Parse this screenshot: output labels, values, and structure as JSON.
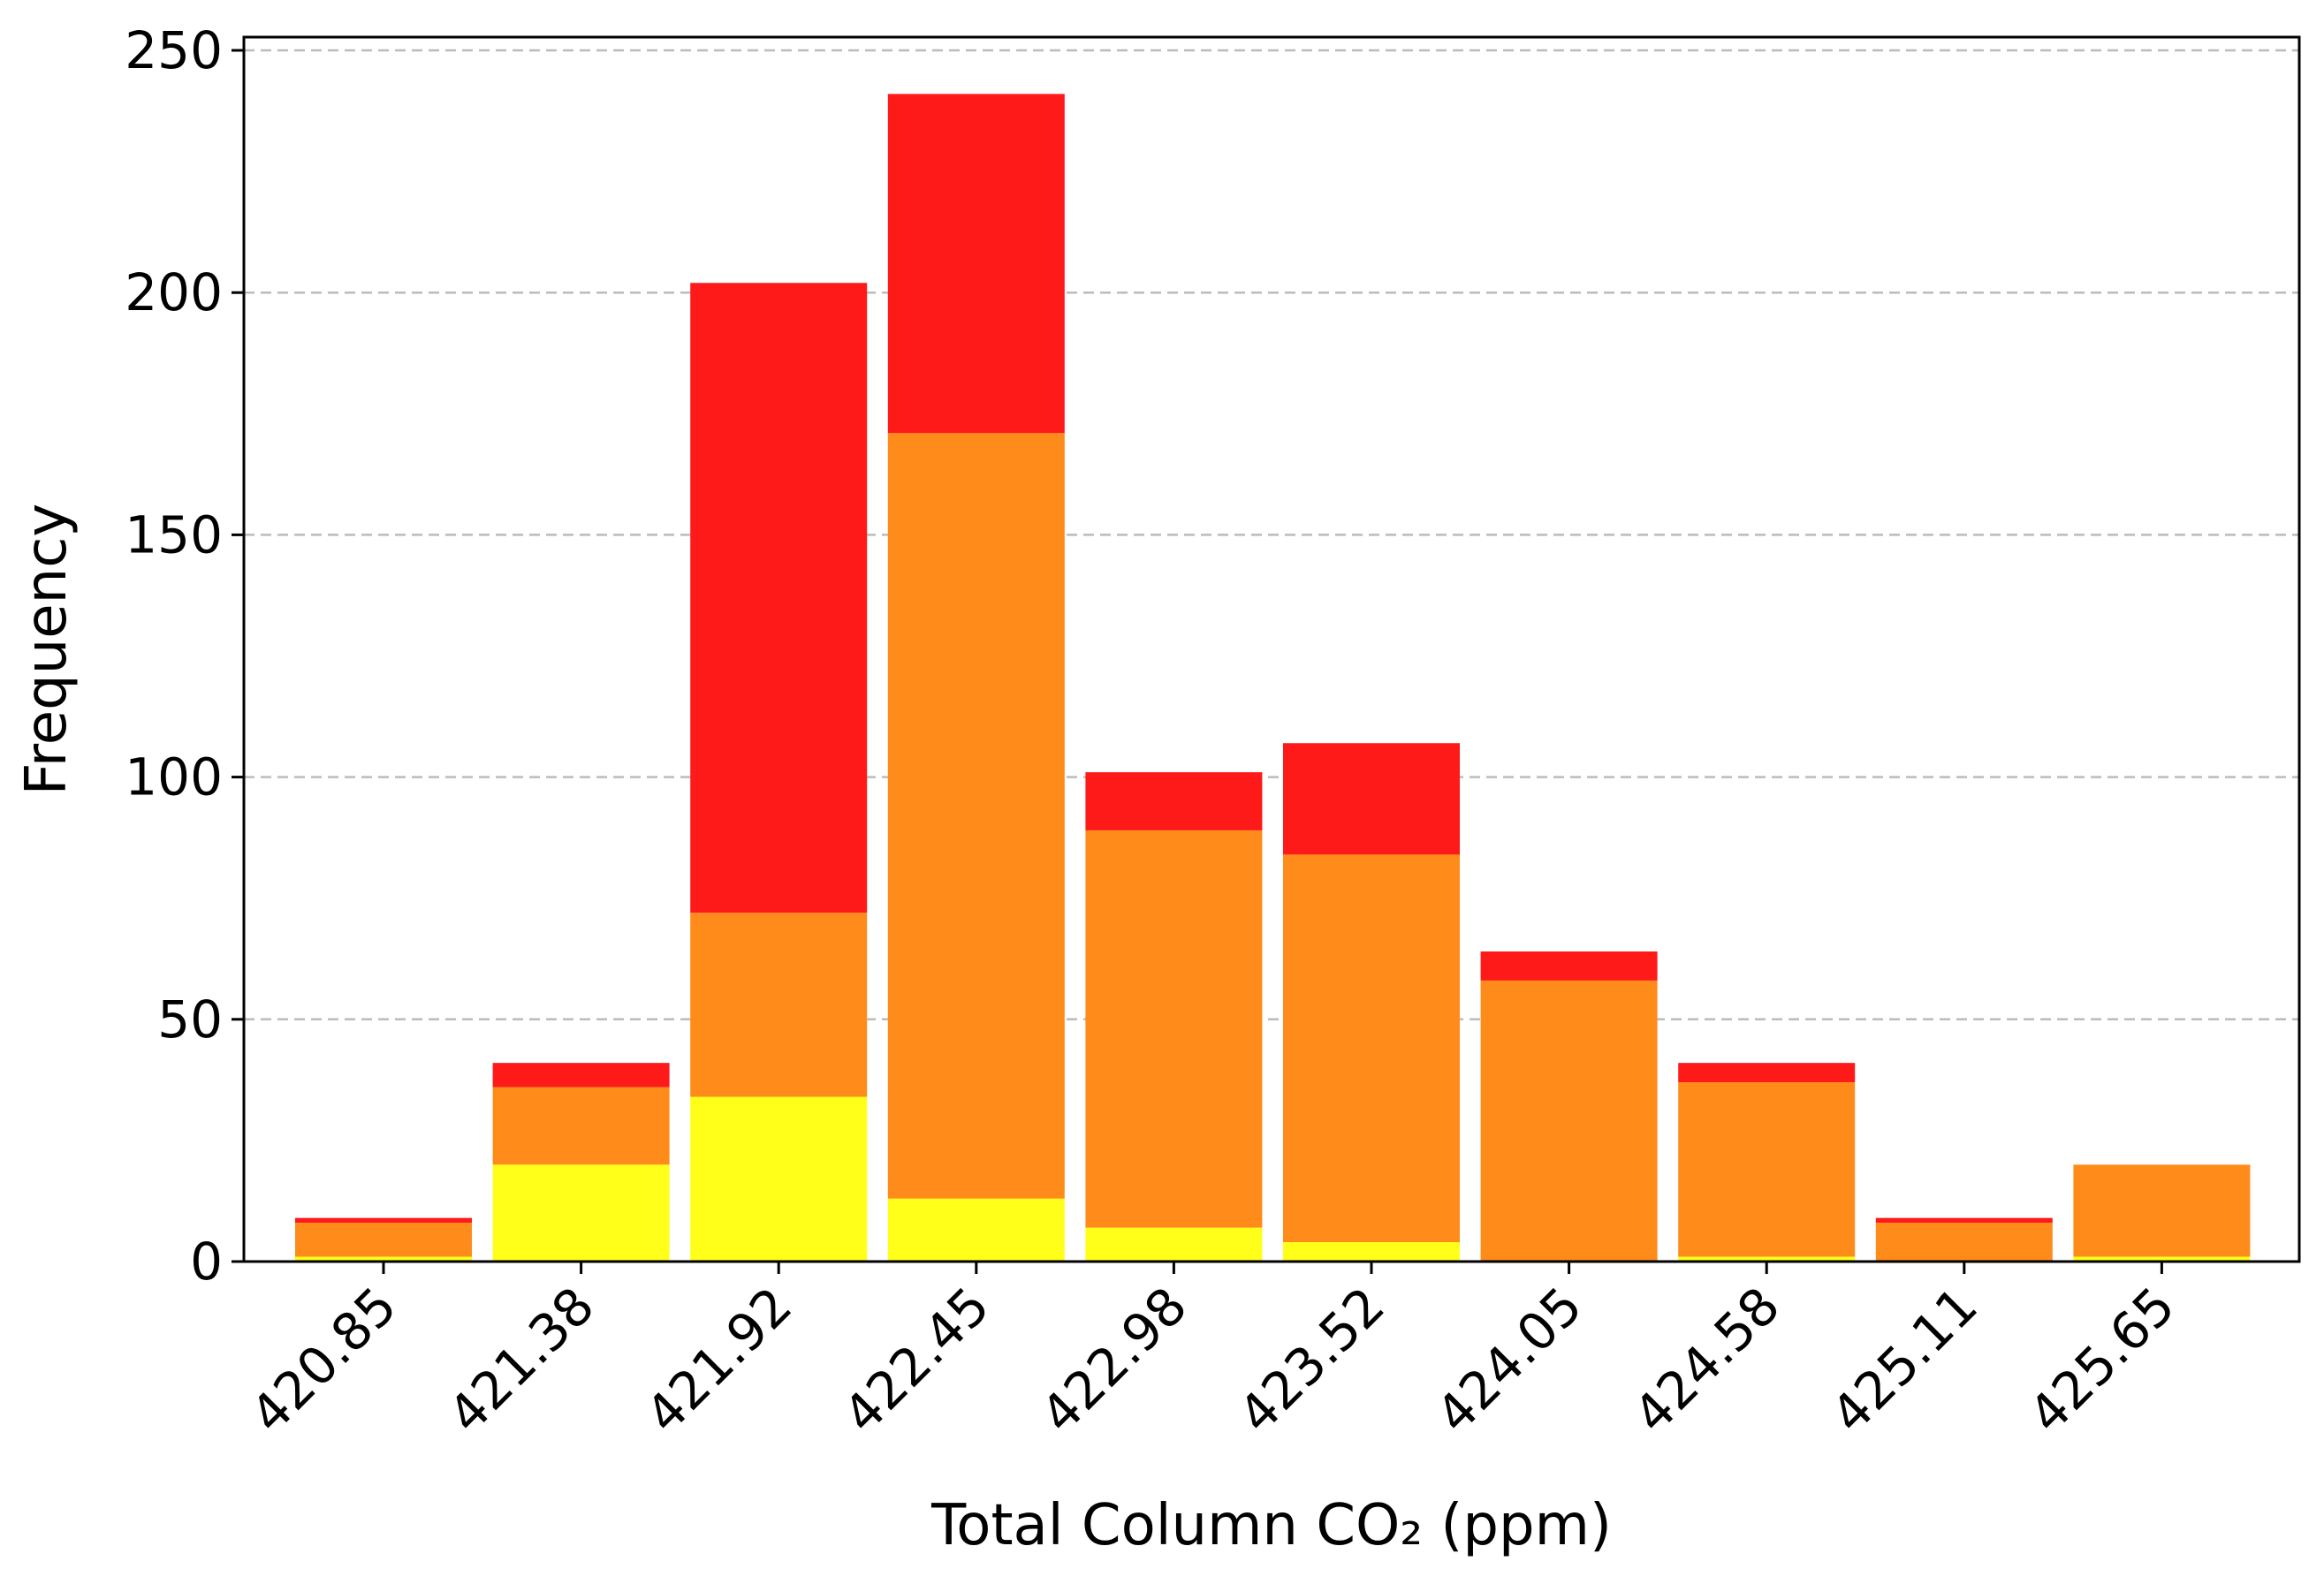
{
  "chart_data": {
    "type": "bar",
    "stacked": true,
    "title": "",
    "xlabel": "Total Column CO₂ (ppm)",
    "ylabel": "Frequency",
    "ylim": [
      0,
      250
    ],
    "yticks": [
      0,
      50,
      100,
      150,
      200,
      250
    ],
    "grid": "y-dashed",
    "categories": [
      "420.85",
      "421.38",
      "421.92",
      "422.45",
      "422.98",
      "423.52",
      "424.05",
      "424.58",
      "425.11",
      "425.65"
    ],
    "series": [
      {
        "name": "yellow",
        "color": "#ffff1a",
        "values": [
          1,
          20,
          34,
          13,
          7,
          4,
          0,
          1,
          0,
          1
        ]
      },
      {
        "name": "orange",
        "color": "#ff8c1a",
        "values": [
          7,
          16,
          38,
          158,
          82,
          80,
          58,
          36,
          8,
          19
        ]
      },
      {
        "name": "red",
        "color": "#ff1a1a",
        "values": [
          1,
          5,
          130,
          70,
          12,
          23,
          6,
          4,
          1,
          0
        ]
      }
    ]
  }
}
